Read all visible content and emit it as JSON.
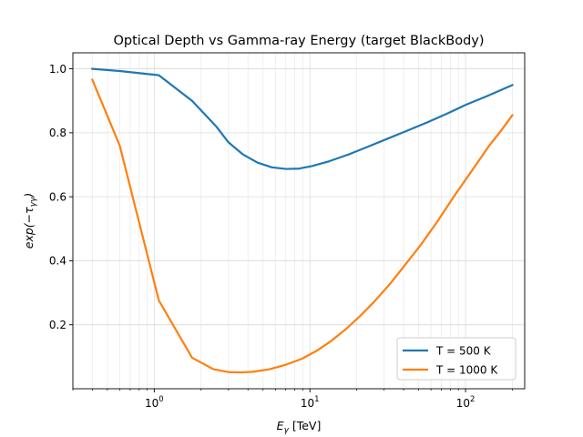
{
  "chart_data": {
    "type": "line",
    "title": "Optical Depth vs Gamma-ray Energy (target BlackBody)",
    "xlabel": "E_γ [TeV]",
    "ylabel": "exp(−τ_γγ)",
    "xscale": "log",
    "xlim": [
      0.3,
      240
    ],
    "ylim": [
      0.0,
      1.05
    ],
    "x_ticks": [
      {
        "value": 1,
        "base": "10",
        "exp": "0"
      },
      {
        "value": 10,
        "base": "10",
        "exp": "1"
      },
      {
        "value": 100,
        "base": "10",
        "exp": "2"
      }
    ],
    "y_ticks": [
      {
        "value": 0.2,
        "label": "0.2"
      },
      {
        "value": 0.4,
        "label": "0.4"
      },
      {
        "value": 0.6,
        "label": "0.6"
      },
      {
        "value": 0.8,
        "label": "0.8"
      },
      {
        "value": 1.0,
        "label": "1.0"
      }
    ],
    "grid": true,
    "legend_position": "lower right",
    "series": [
      {
        "name": "T = 500 K",
        "color": "#1f77b4",
        "x": [
          0.4,
          0.6,
          1.07,
          1.75,
          2.5,
          3.0,
          3.7,
          4.6,
          5.7,
          7.0,
          8.5,
          10.3,
          13.3,
          17.9,
          23.7,
          31.7,
          42.4,
          56.4,
          75.4,
          100,
          135,
          200
        ],
        "y": [
          1.0,
          0.993,
          0.98,
          0.9,
          0.82,
          0.77,
          0.733,
          0.707,
          0.692,
          0.687,
          0.688,
          0.696,
          0.711,
          0.733,
          0.757,
          0.782,
          0.807,
          0.832,
          0.859,
          0.887,
          0.913,
          0.949
        ]
      },
      {
        "name": "T = 1000 K",
        "color": "#ff7f0e",
        "x": [
          0.4,
          0.6,
          1.07,
          1.75,
          2.4,
          3.0,
          3.6,
          4.3,
          5.5,
          7.0,
          8.9,
          11.0,
          13.5,
          17.0,
          21.0,
          26.0,
          33.0,
          41.0,
          52.0,
          66.0,
          85.0,
          110.0,
          140.0,
          170.0,
          200.0
        ],
        "y": [
          0.966,
          0.76,
          0.276,
          0.097,
          0.061,
          0.052,
          0.051,
          0.053,
          0.061,
          0.075,
          0.094,
          0.118,
          0.147,
          0.186,
          0.227,
          0.273,
          0.33,
          0.388,
          0.452,
          0.523,
          0.604,
          0.682,
          0.756,
          0.808,
          0.855
        ]
      }
    ]
  }
}
